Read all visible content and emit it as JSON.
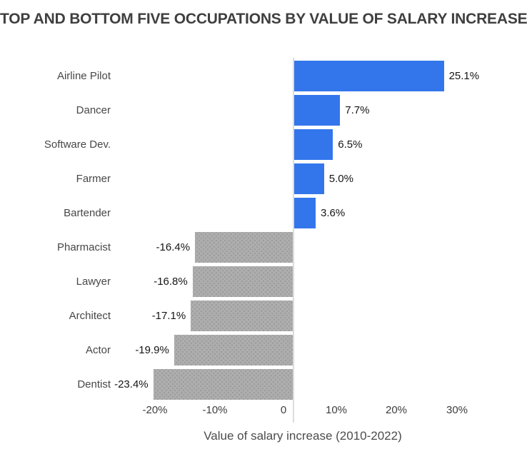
{
  "title": "TOP AND BOTTOM FIVE OCCUPATIONS BY VALUE OF SALARY INCREASE",
  "colors": {
    "positive_bar": "#3376EC",
    "negative_bar": "#ADADAD",
    "axis_line": "#DCDCDC",
    "title_text": "#3F3F3F"
  },
  "chart_data": {
    "type": "bar",
    "orientation": "horizontal",
    "title": "TOP AND BOTTOM FIVE OCCUPATIONS BY VALUE OF SALARY INCREASE",
    "xlabel": "Value of salary increase (2010-2022)",
    "ylabel": "",
    "categories": [
      "Airline Pilot",
      "Dancer",
      "Software Dev.",
      "Farmer",
      "Bartender",
      "Pharmacist",
      "Lawyer",
      "Architect",
      "Actor",
      "Dentist"
    ],
    "series": [
      {
        "name": "Value of salary increase",
        "values": [
          25.1,
          7.7,
          6.5,
          5.0,
          3.6,
          -16.4,
          -16.8,
          -17.1,
          -19.9,
          -23.4
        ],
        "value_labels": [
          "25.1%",
          "7.7%",
          "6.5%",
          "5.0%",
          "3.6%",
          "-16.4%",
          "-16.8%",
          "-17.1%",
          "-19.9%",
          "-23.4%"
        ]
      }
    ],
    "xlim": [
      -24,
      32
    ],
    "x_ticks": [
      {
        "label": "-20%",
        "value": -20
      },
      {
        "label": "-10%",
        "value": -10
      },
      {
        "label": "0",
        "value": 0
      },
      {
        "label": "10%",
        "value": 10
      },
      {
        "label": "20%",
        "value": 20
      },
      {
        "label": "30%",
        "value": 30
      }
    ],
    "grid": false,
    "legend": false,
    "bar_color_rule": "positive bars blue, negative bars gray with dot texture"
  }
}
